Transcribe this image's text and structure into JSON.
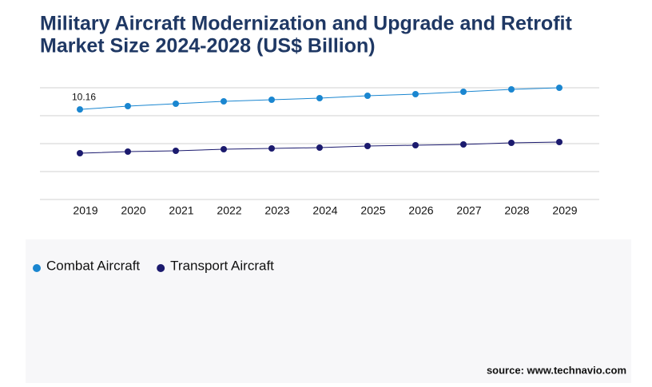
{
  "chart_data": {
    "type": "line",
    "title": "Military Aircraft Modernization and Upgrade and Retrofit",
    "subtitle": "Market Size 2024-2028 (US$ Billion)",
    "categories": [
      "2019",
      "2020",
      "2021",
      "2022",
      "2023",
      "2024",
      "2025",
      "2026",
      "2027",
      "2028",
      "2029"
    ],
    "series": [
      {
        "name": "Combat Aircraft",
        "color": "#1a86d0",
        "values": [
          10.16,
          10.53,
          10.8,
          11.07,
          11.25,
          11.43,
          11.7,
          11.88,
          12.15,
          12.42,
          12.6
        ]
      },
      {
        "name": "Transport Aircraft",
        "color": "#1b1a6e",
        "values": [
          5.22,
          5.4,
          5.49,
          5.67,
          5.76,
          5.85,
          6.03,
          6.12,
          6.21,
          6.39,
          6.48
        ]
      }
    ],
    "ylim": [
      0,
      12.6
    ],
    "source": "source: www.technavio.com"
  }
}
